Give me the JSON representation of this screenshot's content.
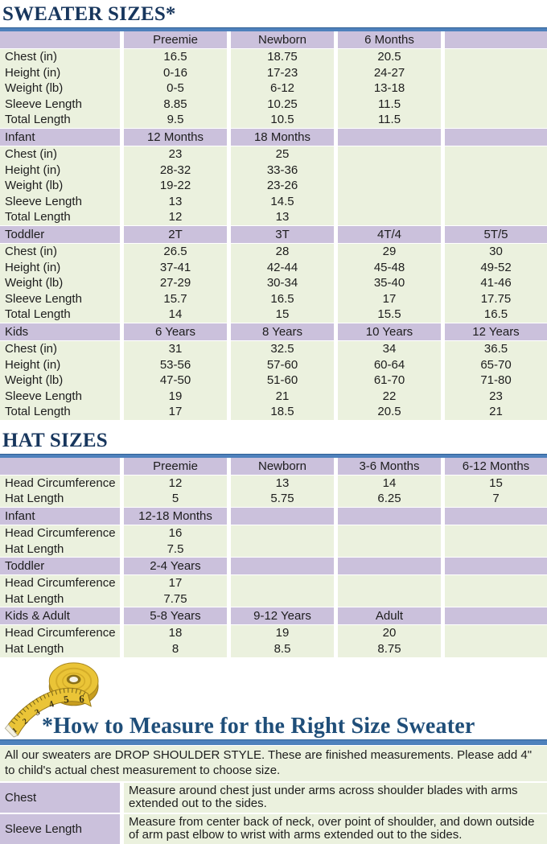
{
  "titles": {
    "sweater": "SWEATER SIZES*",
    "hat": "HAT SIZES",
    "measure": "*How to Measure for the Right Size Sweater"
  },
  "colors": {
    "accent_blue": "#4E81BC",
    "accent_blue_dark": "#2E5F94",
    "header_purple": "#CBC1DC",
    "row_green": "#EBF1DE",
    "title_navy": "#17365D"
  },
  "tape_numbers": [
    "1",
    "2",
    "3",
    "4",
    "5",
    "6"
  ],
  "sweater_table": {
    "rows": [
      {
        "type": "header",
        "cells": [
          "",
          "Preemie",
          "Newborn",
          "6 Months",
          ""
        ]
      },
      {
        "type": "data",
        "cells": [
          "Chest (in)",
          "16.5",
          "18.75",
          "20.5",
          ""
        ]
      },
      {
        "type": "data",
        "cells": [
          "Height (in)",
          "0-16",
          "17-23",
          "24-27",
          ""
        ]
      },
      {
        "type": "data",
        "cells": [
          "Weight (lb)",
          "0-5",
          "6-12",
          "13-18",
          ""
        ]
      },
      {
        "type": "data",
        "cells": [
          "Sleeve Length",
          "8.85",
          "10.25",
          "11.5",
          ""
        ]
      },
      {
        "type": "data",
        "cells": [
          "Total Length",
          "9.5",
          "10.5",
          "11.5",
          ""
        ]
      },
      {
        "type": "section",
        "cells": [
          "Infant",
          "12 Months",
          "18 Months",
          "",
          ""
        ]
      },
      {
        "type": "data",
        "cells": [
          "Chest (in)",
          "23",
          "25",
          "",
          ""
        ]
      },
      {
        "type": "data",
        "cells": [
          "Height (in)",
          "28-32",
          "33-36",
          "",
          ""
        ]
      },
      {
        "type": "data",
        "cells": [
          "Weight (lb)",
          "19-22",
          "23-26",
          "",
          ""
        ]
      },
      {
        "type": "data",
        "cells": [
          "Sleeve Length",
          "13",
          "14.5",
          "",
          ""
        ]
      },
      {
        "type": "data",
        "cells": [
          "Total Length",
          "12",
          "13",
          "",
          ""
        ]
      },
      {
        "type": "section",
        "cells": [
          "Toddler",
          "2T",
          "3T",
          "4T/4",
          "5T/5"
        ]
      },
      {
        "type": "data",
        "cells": [
          "Chest (in)",
          "26.5",
          "28",
          "29",
          "30"
        ]
      },
      {
        "type": "data",
        "cells": [
          "Height (in)",
          "37-41",
          "42-44",
          "45-48",
          "49-52"
        ]
      },
      {
        "type": "data",
        "cells": [
          "Weight (lb)",
          "27-29",
          "30-34",
          "35-40",
          "41-46"
        ]
      },
      {
        "type": "data",
        "cells": [
          "Sleeve Length",
          "15.7",
          "16.5",
          "17",
          "17.75"
        ]
      },
      {
        "type": "data",
        "cells": [
          "Total Length",
          "14",
          "15",
          "15.5",
          "16.5"
        ]
      },
      {
        "type": "section",
        "cells": [
          "Kids",
          "6 Years",
          "8 Years",
          "10 Years",
          "12 Years"
        ]
      },
      {
        "type": "data",
        "cells": [
          "Chest (in)",
          "31",
          "32.5",
          "34",
          "36.5"
        ]
      },
      {
        "type": "data",
        "cells": [
          "Height (in)",
          "53-56",
          "57-60",
          "60-64",
          "65-70"
        ]
      },
      {
        "type": "data",
        "cells": [
          "Weight (lb)",
          "47-50",
          "51-60",
          "61-70",
          "71-80"
        ]
      },
      {
        "type": "data",
        "cells": [
          "Sleeve Length",
          "19",
          "21",
          "22",
          "23"
        ]
      },
      {
        "type": "data",
        "cells": [
          "Total Length",
          "17",
          "18.5",
          "20.5",
          "21"
        ]
      }
    ]
  },
  "hat_table": {
    "rows": [
      {
        "type": "header",
        "cells": [
          "",
          "Preemie",
          "Newborn",
          "3-6 Months",
          "6-12 Months"
        ]
      },
      {
        "type": "data",
        "cells": [
          "Head Circumference",
          "12",
          "13",
          "14",
          "15"
        ]
      },
      {
        "type": "data",
        "cells": [
          "Hat Length",
          "5",
          "5.75",
          "6.25",
          "7"
        ]
      },
      {
        "type": "section",
        "cells": [
          "Infant",
          "12-18 Months",
          "",
          "",
          ""
        ]
      },
      {
        "type": "data",
        "cells": [
          "Head Circumference",
          "16",
          "",
          "",
          ""
        ]
      },
      {
        "type": "data",
        "cells": [
          "Hat Length",
          "7.5",
          "",
          "",
          ""
        ]
      },
      {
        "type": "section",
        "cells": [
          "Toddler",
          "2-4 Years",
          "",
          "",
          ""
        ]
      },
      {
        "type": "data",
        "cells": [
          "Head Circumference",
          "17",
          "",
          "",
          ""
        ]
      },
      {
        "type": "data",
        "cells": [
          "Hat Length",
          "7.75",
          "",
          "",
          ""
        ]
      },
      {
        "type": "section",
        "cells": [
          "Kids & Adult",
          "5-8 Years",
          "9-12 Years",
          "Adult",
          ""
        ]
      },
      {
        "type": "data",
        "cells": [
          "Head Circumference",
          "18",
          "19",
          "20",
          ""
        ]
      },
      {
        "type": "data",
        "cells": [
          "Hat Length",
          "8",
          "8.5",
          "8.75",
          ""
        ]
      }
    ]
  },
  "measure_info": {
    "intro": "All our sweaters are DROP SHOULDER STYLE.  These are finished measurements.  Please add 4\" to child's actual chest measurement to choose size.",
    "rows": [
      {
        "label": "Chest",
        "text": "Measure around chest just under arms across shoulder blades with arms extended out to the sides."
      },
      {
        "label": "Sleeve Length",
        "text": "Measure from center back of neck, over point of shoulder, and down outside of arm past elbow to wrist with arms extended out to the sides."
      }
    ]
  }
}
